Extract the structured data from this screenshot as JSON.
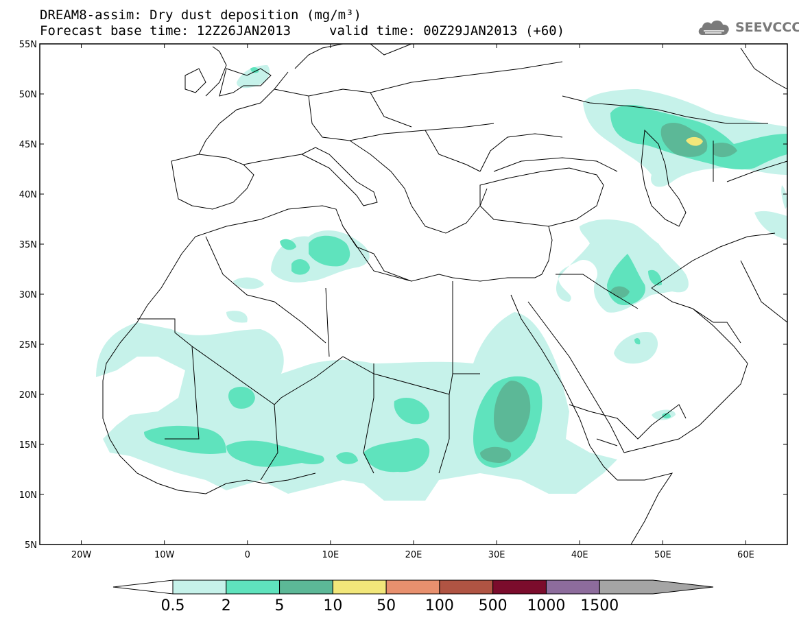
{
  "header": {
    "line1": "DREAM8-assim: Dry dust deposition (mg/m³)",
    "line2": "Forecast base time: 12Z26JAN2013",
    "line2b": "valid time: 00Z29JAN2013 (+60)"
  },
  "logo": {
    "icon": "cloud-logo-icon",
    "text": "SEEVCCC"
  },
  "axes": {
    "lat_labels": [
      "55N",
      "50N",
      "45N",
      "40N",
      "35N",
      "30N",
      "25N",
      "20N",
      "15N",
      "10N",
      "5N"
    ],
    "lon_labels": [
      "20W",
      "10W",
      "0",
      "10E",
      "20E",
      "30E",
      "40E",
      "50E",
      "60E"
    ],
    "lat_range": [
      5,
      55
    ],
    "lon_range": [
      -25,
      65
    ]
  },
  "colorbar": {
    "labels": [
      "0.5",
      "2",
      "5",
      "10",
      "50",
      "100",
      "500",
      "1000",
      "1500"
    ],
    "colors": [
      "#c6f2ea",
      "#5fe3bd",
      "#5cb897",
      "#f2e77a",
      "#e8906e",
      "#b05443",
      "#7b0c2c",
      "#8d6c9c",
      "#a5a5a5"
    ],
    "under_color": "#ffffff"
  },
  "legend_levels": {
    "level_0_5": "#c6f2ea",
    "level_2": "#5fe3bd",
    "level_5": "#5cb897",
    "level_10": "#f2e77a"
  }
}
